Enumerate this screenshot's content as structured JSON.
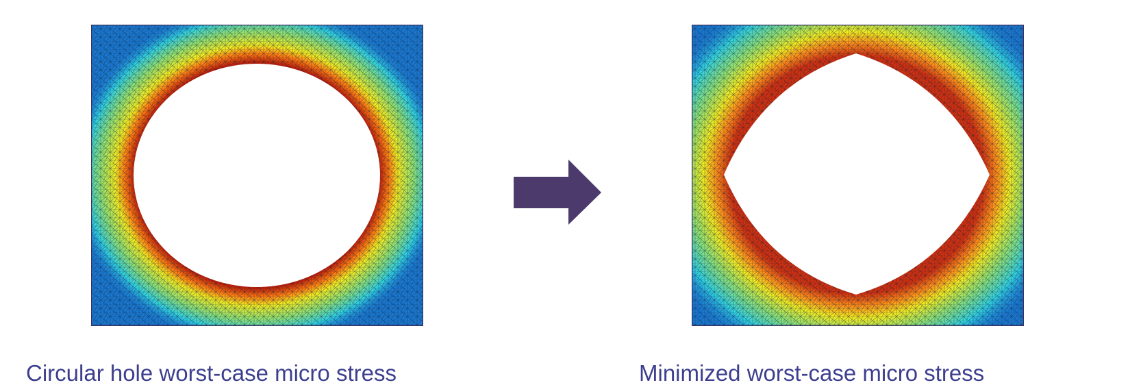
{
  "captions": {
    "left": "Circular hole worst-case micro stress",
    "right": "Minimized worst-case micro stress"
  }
}
